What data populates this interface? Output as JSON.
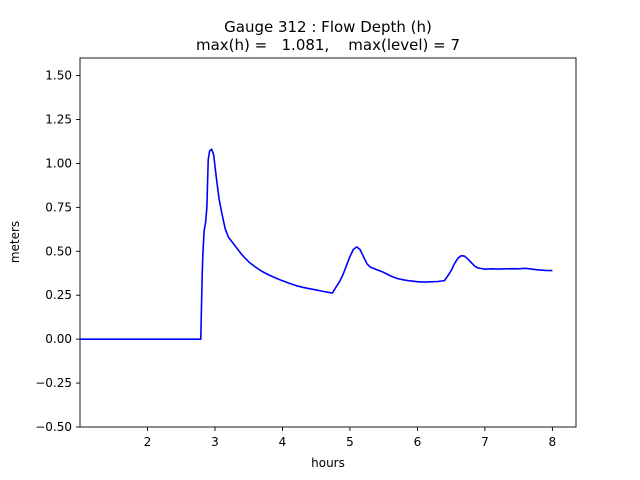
{
  "chart_data": {
    "type": "line",
    "title_line1": "Gauge 312 : Flow Depth (h)",
    "title_line2": "max(h) =   1.081,    max(level) = 7",
    "xlabel": "hours",
    "ylabel": "meters",
    "xlim": [
      1.0,
      8.35
    ],
    "ylim": [
      -0.5,
      1.6
    ],
    "x_ticks": [
      2,
      3,
      4,
      5,
      6,
      7,
      8
    ],
    "x_tick_labels": [
      "2",
      "3",
      "4",
      "5",
      "6",
      "7",
      "8"
    ],
    "y_ticks": [
      -0.5,
      -0.25,
      0.0,
      0.25,
      0.5,
      0.75,
      1.0,
      1.25,
      1.5
    ],
    "y_tick_labels": [
      "−0.50",
      "−0.25",
      "0.00",
      "0.25",
      "0.50",
      "0.75",
      "1.00",
      "1.25",
      "1.50"
    ],
    "grid": false,
    "series": [
      {
        "color": "#0000ff",
        "x": [
          1.0,
          2.0,
          2.79,
          2.8,
          2.81,
          2.82,
          2.84,
          2.86,
          2.88,
          2.9,
          2.92,
          2.95,
          2.98,
          3.02,
          3.06,
          3.1,
          3.15,
          3.2,
          3.3,
          3.4,
          3.5,
          3.6,
          3.7,
          3.8,
          3.9,
          4.0,
          4.1,
          4.2,
          4.3,
          4.4,
          4.5,
          4.6,
          4.7,
          4.74,
          4.8,
          4.85,
          4.9,
          4.95,
          5.0,
          5.05,
          5.1,
          5.15,
          5.2,
          5.25,
          5.3,
          5.4,
          5.5,
          5.6,
          5.7,
          5.8,
          5.9,
          6.0,
          6.1,
          6.2,
          6.3,
          6.4,
          6.45,
          6.5,
          6.55,
          6.6,
          6.65,
          6.7,
          6.75,
          6.8,
          6.85,
          6.9,
          6.95,
          7.0,
          7.1,
          7.2,
          7.3,
          7.4,
          7.5,
          7.6,
          7.7,
          7.8,
          7.9,
          8.0
        ],
        "y": [
          0.0,
          0.0,
          0.0,
          0.18,
          0.35,
          0.48,
          0.62,
          0.66,
          0.75,
          1.02,
          1.07,
          1.081,
          1.05,
          0.92,
          0.8,
          0.72,
          0.63,
          0.58,
          0.53,
          0.48,
          0.44,
          0.41,
          0.385,
          0.365,
          0.348,
          0.332,
          0.318,
          0.305,
          0.295,
          0.287,
          0.28,
          0.272,
          0.265,
          0.262,
          0.3,
          0.33,
          0.37,
          0.42,
          0.47,
          0.51,
          0.525,
          0.51,
          0.47,
          0.43,
          0.41,
          0.395,
          0.38,
          0.36,
          0.345,
          0.337,
          0.331,
          0.327,
          0.325,
          0.326,
          0.328,
          0.333,
          0.36,
          0.39,
          0.43,
          0.46,
          0.475,
          0.472,
          0.455,
          0.435,
          0.415,
          0.405,
          0.402,
          0.398,
          0.4,
          0.399,
          0.4,
          0.401,
          0.4,
          0.403,
          0.398,
          0.394,
          0.391,
          0.39
        ]
      }
    ]
  }
}
